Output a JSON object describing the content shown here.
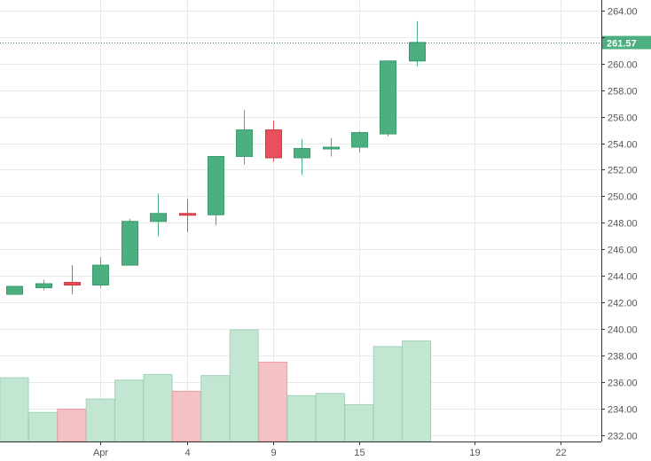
{
  "chart_data": {
    "type": "candlestick",
    "ylim": [
      231.5,
      264.8
    ],
    "y_ticks": [
      232,
      234,
      236,
      238,
      240,
      242,
      244,
      246,
      248,
      250,
      252,
      254,
      256,
      258,
      260,
      262,
      264
    ],
    "y_tick_labels": [
      "232.00",
      "234.00",
      "236.00",
      "238.00",
      "240.00",
      "242.00",
      "244.00",
      "246.00",
      "248.00",
      "250.00",
      "252.00",
      "254.00",
      "256.00",
      "258.00",
      "260.00",
      "262.00",
      "264.00"
    ],
    "x_ticks": [
      {
        "index": 3.5,
        "label": "Apr"
      },
      {
        "index": 6.5,
        "label": "4"
      },
      {
        "index": 9.5,
        "label": "9"
      },
      {
        "index": 12.5,
        "label": "15"
      },
      {
        "index": 16.5,
        "label": "19"
      },
      {
        "index": 19.5,
        "label": "22"
      }
    ],
    "total_slots": 22.5,
    "last_price": 261.57,
    "last_price_label": "261.57",
    "colors": {
      "up": "#4caf7f",
      "down": "#e8505b",
      "up_volume": "#c3e6d3",
      "down_volume": "#f4c2c5",
      "grid": "#e6e9ee",
      "axis": "#333333",
      "last_price": "#4caf7f"
    },
    "candles": [
      {
        "open": 242.6,
        "high": 243.2,
        "low": 242.6,
        "close": 243.2,
        "volume": 0.57
      },
      {
        "open": 243.1,
        "high": 243.7,
        "low": 242.9,
        "close": 243.4,
        "volume": 0.26
      },
      {
        "open": 243.5,
        "high": 244.8,
        "low": 242.6,
        "close": 243.3,
        "volume": 0.29
      },
      {
        "open": 243.3,
        "high": 245.4,
        "low": 243.1,
        "close": 244.8,
        "volume": 0.38
      },
      {
        "open": 244.8,
        "high": 248.3,
        "low": 244.8,
        "close": 248.1,
        "volume": 0.55
      },
      {
        "open": 248.1,
        "high": 250.2,
        "low": 247.0,
        "close": 248.7,
        "volume": 0.6
      },
      {
        "open": 248.7,
        "high": 249.8,
        "low": 247.3,
        "close": 248.6,
        "volume": 0.45
      },
      {
        "open": 248.6,
        "high": 253.0,
        "low": 247.8,
        "close": 253.0,
        "volume": 0.59
      },
      {
        "open": 253.0,
        "high": 256.5,
        "low": 252.4,
        "close": 255.0,
        "volume": 1.0
      },
      {
        "open": 255.0,
        "high": 255.7,
        "low": 252.6,
        "close": 252.9,
        "volume": 0.71
      },
      {
        "open": 252.9,
        "high": 254.3,
        "low": 251.6,
        "close": 253.6,
        "volume": 0.41
      },
      {
        "open": 253.6,
        "high": 254.4,
        "low": 253.0,
        "close": 253.7,
        "volume": 0.43
      },
      {
        "open": 253.7,
        "high": 254.9,
        "low": 253.3,
        "close": 254.8,
        "volume": 0.33
      },
      {
        "open": 254.7,
        "high": 260.2,
        "low": 254.5,
        "close": 260.2,
        "volume": 0.85
      },
      {
        "open": 260.2,
        "high": 263.2,
        "low": 259.8,
        "close": 261.6,
        "volume": 0.9
      }
    ]
  }
}
